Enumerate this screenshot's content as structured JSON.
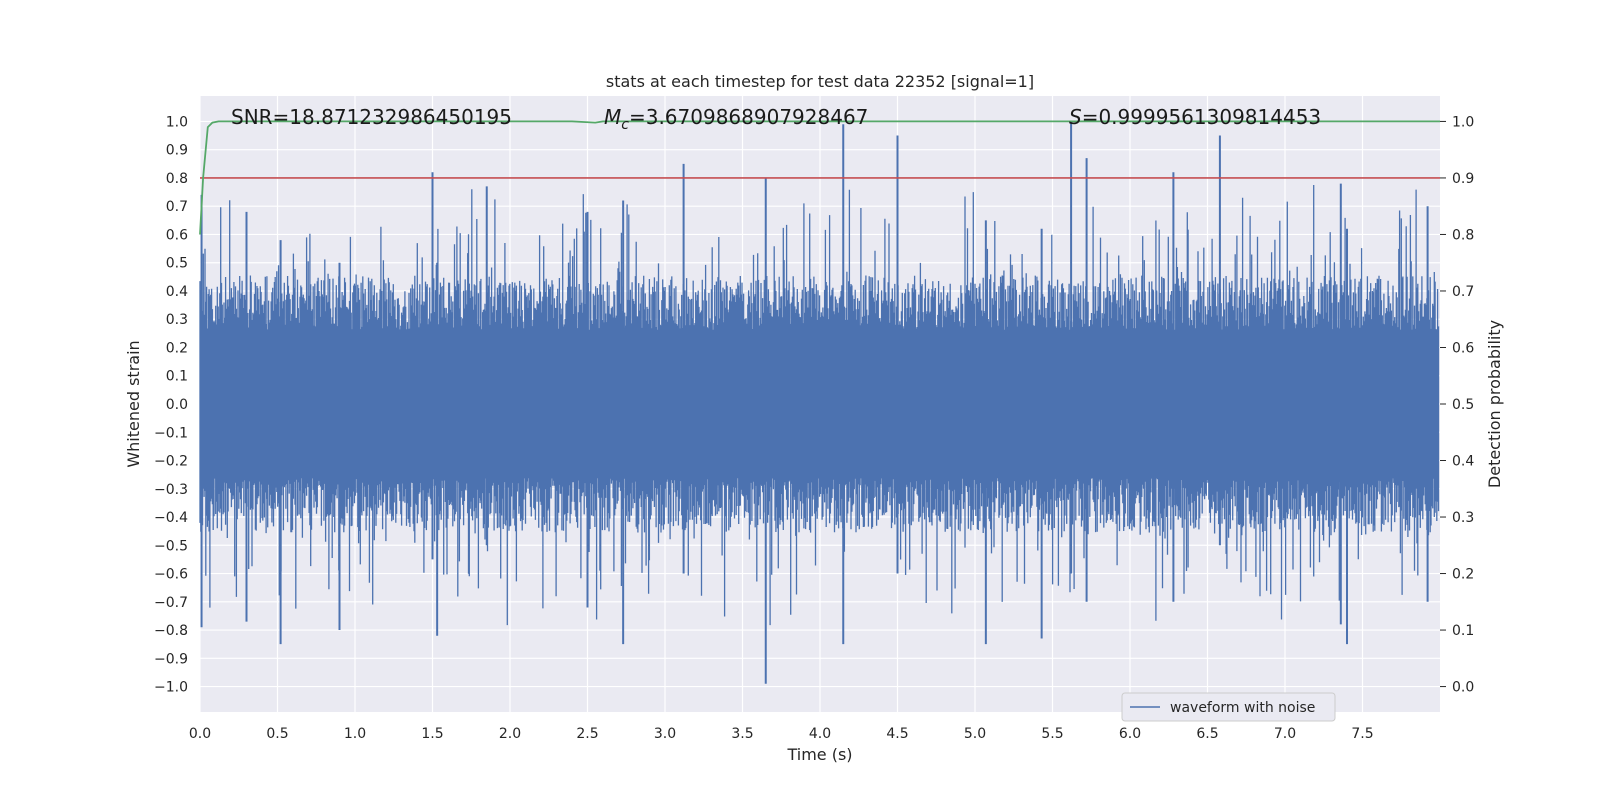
{
  "chart_data": {
    "type": "line",
    "title": "stats at each timestep for test data 22352 [signal=1]",
    "xlabel": "Time (s)",
    "ylabel_left": "Whitened strain",
    "ylabel_right": "Detection probability",
    "xlim": [
      0.0,
      8.0
    ],
    "ylim_left": [
      -1.09,
      1.09
    ],
    "ylim_right": [
      -0.045,
      1.045
    ],
    "x_ticks": [
      "0.0",
      "0.5",
      "1.0",
      "1.5",
      "2.0",
      "2.5",
      "3.0",
      "3.5",
      "4.0",
      "4.5",
      "5.0",
      "5.5",
      "6.0",
      "6.5",
      "7.0",
      "7.5"
    ],
    "y_ticks_left": [
      "1.0",
      "0.9",
      "0.8",
      "0.7",
      "0.6",
      "0.5",
      "0.4",
      "0.3",
      "0.2",
      "0.1",
      "0.0",
      "−0.1",
      "−0.2",
      "−0.3",
      "−0.4",
      "−0.5",
      "−0.6",
      "−0.7",
      "−0.8",
      "−0.9",
      "−1.0"
    ],
    "y_ticks_right": [
      "1.0",
      "0.9",
      "0.8",
      "0.7",
      "0.6",
      "0.5",
      "0.4",
      "0.3",
      "0.2",
      "0.1",
      "0.0"
    ],
    "annotations": {
      "snr": "SNR=18.871232986450195",
      "mc_symbol": "M",
      "mc_sub": "c",
      "mc_value": "=3.6709868907928467",
      "s_symbol": "S",
      "s_value": "=0.9999561309814453"
    },
    "legend": {
      "label": "waveform with noise",
      "location": "lower-right"
    },
    "series": [
      {
        "name": "waveform with noise",
        "axis": "left",
        "color": "#4c72b0",
        "typical_amplitude": 0.35,
        "spikes": [
          {
            "t": 0.01,
            "lo": -0.79,
            "hi": 0.74
          },
          {
            "t": 0.3,
            "lo": -0.77,
            "hi": 0.68
          },
          {
            "t": 0.52,
            "lo": -0.85,
            "hi": 0.58
          },
          {
            "t": 0.9,
            "lo": -0.8,
            "hi": 0.5
          },
          {
            "t": 1.5,
            "lo": -0.55,
            "hi": 0.82
          },
          {
            "t": 1.53,
            "lo": -0.82,
            "hi": 0.5
          },
          {
            "t": 1.85,
            "lo": -0.5,
            "hi": 0.77
          },
          {
            "t": 2.5,
            "lo": -0.72,
            "hi": 0.68
          },
          {
            "t": 2.73,
            "lo": -0.85,
            "hi": 0.72
          },
          {
            "t": 3.12,
            "lo": -0.6,
            "hi": 0.85
          },
          {
            "t": 3.65,
            "lo": -0.99,
            "hi": 0.8
          },
          {
            "t": 4.15,
            "lo": -0.85,
            "hi": 0.99
          },
          {
            "t": 4.5,
            "lo": -0.6,
            "hi": 0.95
          },
          {
            "t": 5.07,
            "lo": -0.85,
            "hi": 0.65
          },
          {
            "t": 5.43,
            "lo": -0.83,
            "hi": 0.62
          },
          {
            "t": 5.62,
            "lo": -0.6,
            "hi": 1.0
          },
          {
            "t": 5.72,
            "lo": -0.7,
            "hi": 0.87
          },
          {
            "t": 6.28,
            "lo": -0.7,
            "hi": 0.82
          },
          {
            "t": 6.58,
            "lo": -0.5,
            "hi": 0.95
          },
          {
            "t": 7.36,
            "lo": -0.78,
            "hi": 0.78
          },
          {
            "t": 7.4,
            "lo": -0.85,
            "hi": 0.62
          },
          {
            "t": 7.92,
            "lo": -0.7,
            "hi": 0.7
          }
        ]
      },
      {
        "name": "detection probability",
        "axis": "right",
        "color": "#55a868",
        "x": [
          0.0,
          0.02,
          0.05,
          0.08,
          0.12,
          0.5,
          2.4,
          2.55,
          2.6,
          8.0
        ],
        "y": [
          0.8,
          0.9,
          0.99,
          0.998,
          1.0,
          1.0,
          1.0,
          0.998,
          1.0,
          1.0
        ]
      },
      {
        "name": "threshold",
        "axis": "left",
        "color": "#c44e52",
        "x": [
          0.0,
          8.0
        ],
        "y": [
          0.8,
          0.8
        ]
      }
    ]
  }
}
